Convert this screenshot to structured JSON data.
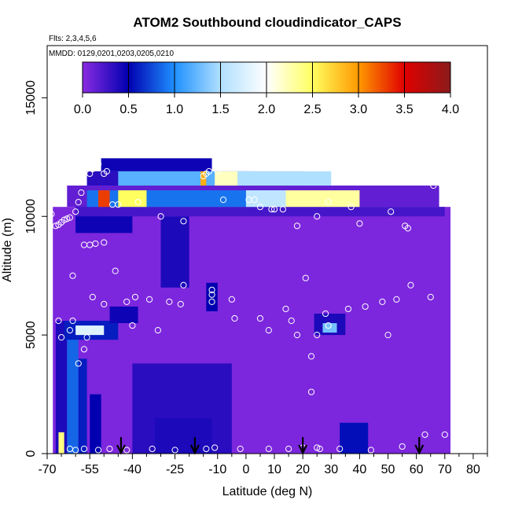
{
  "chart_data": {
    "type": "heatmap",
    "title": "ATOM2 Southbound cloudindicator_CAPS",
    "flights_note": "Flts: 2,3,4,5,6",
    "dates_note": "MMDD: 0129,0201,0203,0205,0210",
    "xlabel": "Latitude (deg N)",
    "ylabel": "Altitude (m)",
    "xlim": [
      -70,
      85
    ],
    "ylim": [
      0,
      17200
    ],
    "x_ticks": [
      -70,
      -55,
      -40,
      -25,
      -10,
      0,
      10,
      20,
      30,
      40,
      50,
      60,
      70,
      80
    ],
    "x_tick_labels": [
      "-70",
      "-55",
      "-40",
      "-25",
      "-10",
      "0",
      "10",
      "20",
      "30",
      "40",
      "50",
      "60",
      "70",
      "80"
    ],
    "y_ticks": [
      0,
      5000,
      10000,
      15000
    ],
    "y_tick_labels": [
      "0",
      "5000",
      "10000",
      "15000"
    ],
    "colorbar": {
      "min": 0,
      "max": 4,
      "ticks": [
        0,
        0.5,
        1,
        1.5,
        2,
        2.5,
        3,
        3.5,
        4
      ],
      "tick_labels": [
        "0.0",
        "0.5",
        "1.0",
        "1.5",
        "2.0",
        "2.5",
        "3.0",
        "3.5",
        "4.0"
      ],
      "stops": [
        "#8a2be2",
        "#0000b0",
        "#1e90ff",
        "#b0e0ff",
        "#ffffff",
        "#ffff60",
        "#ff9900",
        "#e00000",
        "#8b1a1a"
      ]
    },
    "regions": [
      {
        "x": [
          -68,
          72
        ],
        "y": [
          0,
          10400
        ],
        "value": 0.05
      },
      {
        "x": [
          -63,
          68
        ],
        "y": [
          10400,
          11300
        ],
        "value": 0.15
      },
      {
        "x": [
          -56,
          20
        ],
        "y": [
          11300,
          11900
        ],
        "value": 0.35
      },
      {
        "x": [
          -51,
          -12
        ],
        "y": [
          11900,
          12450
        ],
        "value": 0.45
      },
      {
        "x": [
          -67,
          -63
        ],
        "y": [
          0,
          5600
        ],
        "value": 0.4
      },
      {
        "x": [
          -63,
          -59
        ],
        "y": [
          0,
          5000
        ],
        "value": 0.85
      },
      {
        "x": [
          -59,
          -56
        ],
        "y": [
          0,
          4000
        ],
        "value": 0.6
      },
      {
        "x": [
          -66,
          -64
        ],
        "y": [
          0,
          900
        ],
        "value": 2.4
      },
      {
        "x": [
          -55,
          -51
        ],
        "y": [
          0,
          2500
        ],
        "value": 0.5
      },
      {
        "x": [
          -64,
          -45
        ],
        "y": [
          4800,
          5600
        ],
        "value": 0.6
      },
      {
        "x": [
          -60,
          -50
        ],
        "y": [
          5000,
          5400
        ],
        "value": 1.8
      },
      {
        "x": [
          -48,
          -38
        ],
        "y": [
          5500,
          6200
        ],
        "value": 0.45
      },
      {
        "x": [
          -40,
          -5
        ],
        "y": [
          0,
          3800
        ],
        "value": 0.35
      },
      {
        "x": [
          -32,
          -12
        ],
        "y": [
          0,
          1500
        ],
        "value": 0.4
      },
      {
        "x": [
          -30,
          -20
        ],
        "y": [
          7000,
          10000
        ],
        "value": 0.4
      },
      {
        "x": [
          -14,
          -10
        ],
        "y": [
          6000,
          7200
        ],
        "value": 0.5
      },
      {
        "x": [
          24,
          35
        ],
        "y": [
          5000,
          5900
        ],
        "value": 0.4
      },
      {
        "x": [
          27,
          32
        ],
        "y": [
          5100,
          5500
        ],
        "value": 1.3
      },
      {
        "x": [
          33,
          43
        ],
        "y": [
          0,
          1300
        ],
        "value": 0.55
      },
      {
        "x": [
          -60,
          -40
        ],
        "y": [
          9300,
          10400
        ],
        "value": 0.45
      },
      {
        "x": [
          -60,
          70
        ],
        "y": [
          10000,
          10400
        ],
        "value": 0.25
      },
      {
        "x": [
          -56,
          14
        ],
        "y": [
          10400,
          11100
        ],
        "value": 0.9
      },
      {
        "x": [
          -45,
          2
        ],
        "y": [
          11300,
          11900
        ],
        "value": 1.2
      },
      {
        "x": [
          -10,
          30
        ],
        "y": [
          11300,
          11900
        ],
        "value": 1.5
      },
      {
        "x": [
          -11,
          -3
        ],
        "y": [
          11300,
          11900
        ],
        "value": 2.2
      },
      {
        "x": [
          -16,
          -14
        ],
        "y": [
          11300,
          11900
        ],
        "value": 2.9
      },
      {
        "x": [
          -52,
          -48
        ],
        "y": [
          10400,
          11100
        ],
        "value": 3.3
      },
      {
        "x": [
          -45,
          -35
        ],
        "y": [
          10400,
          11100
        ],
        "value": 2.5
      },
      {
        "x": [
          14,
          40
        ],
        "y": [
          10400,
          11100
        ],
        "value": 2.3
      },
      {
        "x": [
          0,
          14
        ],
        "y": [
          10400,
          11100
        ],
        "value": 1.6
      }
    ],
    "sample_points": [
      [
        -68.5,
        10100
      ],
      [
        -67,
        9600
      ],
      [
        -66,
        9650
      ],
      [
        -65,
        9750
      ],
      [
        -64,
        9850
      ],
      [
        -63,
        9900
      ],
      [
        -62,
        9950
      ],
      [
        -60,
        10200
      ],
      [
        -59,
        10600
      ],
      [
        -58,
        11000
      ],
      [
        -55,
        11800
      ],
      [
        -54,
        12000
      ],
      [
        -52,
        12200
      ],
      [
        -50,
        11800
      ],
      [
        -49,
        11900
      ],
      [
        -47,
        10500
      ],
      [
        -45,
        10500
      ],
      [
        -38,
        10600
      ],
      [
        -30,
        10000
      ],
      [
        -22,
        9800
      ],
      [
        -15,
        11700
      ],
      [
        -14,
        11800
      ],
      [
        -13,
        11900
      ],
      [
        -10,
        11900
      ],
      [
        -8,
        10700
      ],
      [
        1,
        10700
      ],
      [
        3,
        10700
      ],
      [
        5,
        10400
      ],
      [
        9,
        10300
      ],
      [
        10,
        10300
      ],
      [
        13,
        10300
      ],
      [
        18,
        9600
      ],
      [
        25,
        10000
      ],
      [
        29,
        10600
      ],
      [
        37,
        10400
      ],
      [
        40,
        9700
      ],
      [
        51,
        10200
      ],
      [
        56,
        9600
      ],
      [
        57,
        9500
      ],
      [
        66,
        11300
      ],
      [
        69,
        11300
      ],
      [
        -57,
        8800
      ],
      [
        -55,
        8800
      ],
      [
        -53,
        8850
      ],
      [
        -50,
        8900
      ],
      [
        -46,
        7700
      ],
      [
        -42,
        6400
      ],
      [
        -39,
        6600
      ],
      [
        -34,
        6500
      ],
      [
        -27,
        6400
      ],
      [
        -23,
        6300
      ],
      [
        -22,
        7100
      ],
      [
        -12,
        6900
      ],
      [
        -12,
        6700
      ],
      [
        -12,
        6400
      ],
      [
        -5,
        6500
      ],
      [
        -4,
        5700
      ],
      [
        5,
        5700
      ],
      [
        8,
        5200
      ],
      [
        14,
        6100
      ],
      [
        16,
        5600
      ],
      [
        18,
        5000
      ],
      [
        21,
        7400
      ],
      [
        23,
        4100
      ],
      [
        25,
        5000
      ],
      [
        28,
        5900
      ],
      [
        29,
        5400
      ],
      [
        36,
        6100
      ],
      [
        42,
        6200
      ],
      [
        48,
        6400
      ],
      [
        50,
        5000
      ],
      [
        53,
        6500
      ],
      [
        58,
        7100
      ],
      [
        65,
        6600
      ],
      [
        -61,
        7500
      ],
      [
        -54,
        6600
      ],
      [
        -50,
        6300
      ],
      [
        -40,
        5400
      ],
      [
        -31,
        5200
      ],
      [
        -61,
        5600
      ],
      [
        -57,
        4400
      ],
      [
        -59,
        3800
      ],
      [
        -66,
        5600
      ],
      [
        -65,
        4900
      ],
      [
        -62,
        5200
      ],
      [
        -56,
        4900
      ],
      [
        -62,
        200
      ],
      [
        -60,
        150
      ],
      [
        -57,
        200
      ],
      [
        -52,
        150
      ],
      [
        -48,
        200
      ],
      [
        -42,
        150
      ],
      [
        -33,
        200
      ],
      [
        -25,
        150
      ],
      [
        -14,
        200
      ],
      [
        -11,
        250
      ],
      [
        -2,
        200
      ],
      [
        8,
        200
      ],
      [
        15,
        200
      ],
      [
        20,
        250
      ],
      [
        25,
        250
      ],
      [
        26,
        200
      ],
      [
        33,
        200
      ],
      [
        44,
        150
      ],
      [
        55,
        300
      ],
      [
        63,
        800
      ],
      [
        70,
        800
      ],
      [
        23,
        2600
      ]
    ],
    "arrows": [
      -44,
      -18,
      20,
      61
    ]
  }
}
